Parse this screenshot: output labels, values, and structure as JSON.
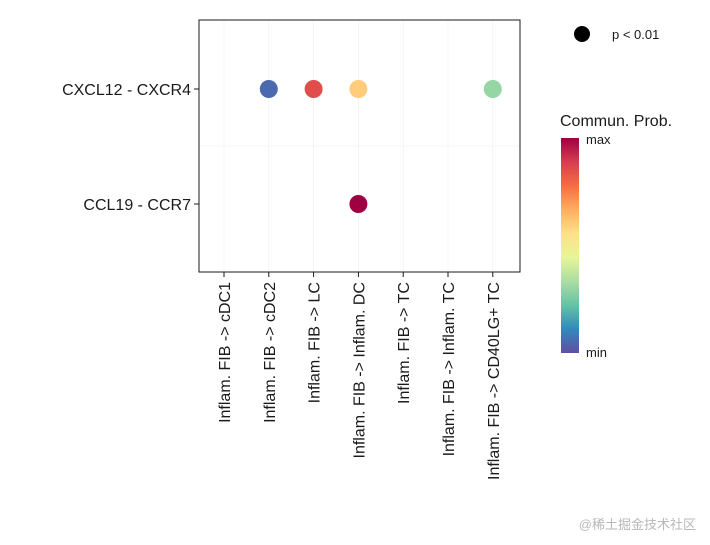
{
  "chart_data": {
    "type": "scatter",
    "title": "",
    "xlabel": "",
    "ylabel": "",
    "x_categories": [
      "Inflam. FIB -> cDC1",
      "Inflam. FIB -> cDC2",
      "Inflam. FIB -> LC",
      "Inflam. FIB -> Inflam. DC",
      "Inflam. FIB -> TC",
      "Inflam. FIB -> Inflam. TC",
      "Inflam. FIB -> CD40LG+ TC"
    ],
    "y_categories": [
      "CXCL12 - CXCR4",
      "CCL19 - CCR7"
    ],
    "points": [
      {
        "x": "Inflam. FIB -> cDC2",
        "y": "CXCL12 - CXCR4",
        "prob": 0.05
      },
      {
        "x": "Inflam. FIB -> LC",
        "y": "CXCL12 - CXCR4",
        "prob": 0.85
      },
      {
        "x": "Inflam. FIB -> Inflam. DC",
        "y": "CXCL12 - CXCR4",
        "prob": 0.6
      },
      {
        "x": "Inflam. FIB -> CD40LG+ TC",
        "y": "CXCL12 - CXCR4",
        "prob": 0.3
      },
      {
        "x": "Inflam. FIB -> Inflam. DC",
        "y": "CCL19 - CCR7",
        "prob": 1.0
      }
    ],
    "color_scale": [
      "#5E4FA2",
      "#3288BD",
      "#66C2A5",
      "#ABDDA4",
      "#E6F598",
      "#FEE08B",
      "#FDAE61",
      "#F46D43",
      "#D53E4F",
      "#9E0142"
    ],
    "size_legend": {
      "label": "p < 0.01"
    },
    "color_legend": {
      "title": "Commun. Prob.",
      "max_label": "max",
      "min_label": "min"
    },
    "grid": true,
    "legend_position": "right"
  },
  "watermark": "@稀土掘金技术社区"
}
